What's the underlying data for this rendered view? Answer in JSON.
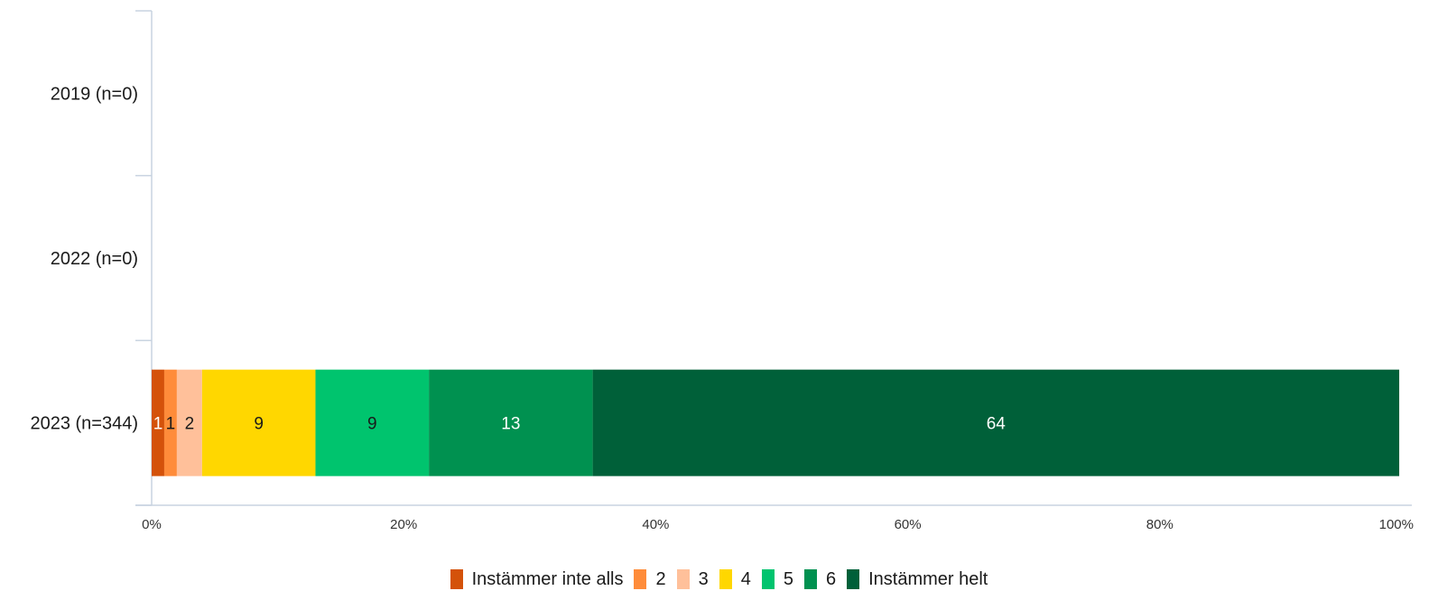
{
  "chart_data": {
    "type": "bar",
    "orientation": "horizontal",
    "stacked": true,
    "categories": [
      "2019 (n=0)",
      "2022 (n=0)",
      "2023 (n=344)"
    ],
    "series": [
      {
        "name": "Instämmer inte alls",
        "values": [
          0,
          0,
          1
        ],
        "color": "#D4520A",
        "label_color": "#ffffff"
      },
      {
        "name": "2",
        "values": [
          0,
          0,
          1
        ],
        "color": "#FF8C3A",
        "label_color": "#1a1a1a"
      },
      {
        "name": "3",
        "values": [
          0,
          0,
          2
        ],
        "color": "#FFC09A",
        "label_color": "#1a1a1a"
      },
      {
        "name": "4",
        "values": [
          0,
          0,
          9
        ],
        "color": "#FFD700",
        "label_color": "#1a1a1a"
      },
      {
        "name": "5",
        "values": [
          0,
          0,
          9
        ],
        "color": "#00C46E",
        "label_color": "#1a1a1a"
      },
      {
        "name": "6",
        "values": [
          0,
          0,
          13
        ],
        "color": "#009150",
        "label_color": "#ffffff"
      },
      {
        "name": "Instämmer helt",
        "values": [
          0,
          0,
          64
        ],
        "color": "#006039",
        "label_color": "#ffffff"
      }
    ],
    "xlim": [
      0,
      100
    ],
    "x_ticks": [
      "0%",
      "20%",
      "40%",
      "60%",
      "80%",
      "100%"
    ],
    "legend_position": "bottom",
    "grid": false
  }
}
